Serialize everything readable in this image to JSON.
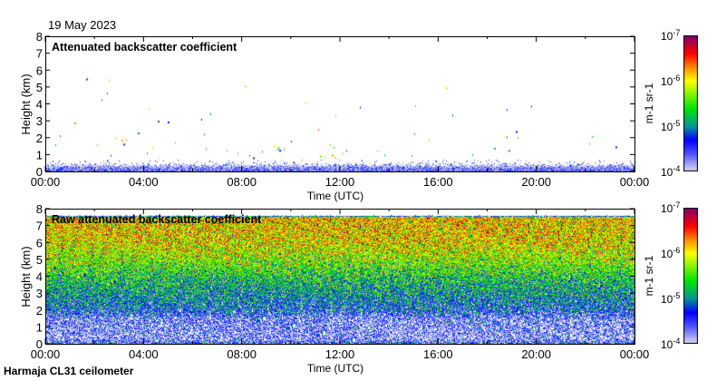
{
  "date": "19 May 2023",
  "footer": "Harmaja CL31 ceilometer",
  "chart_data": [
    {
      "type": "heatmap",
      "title": "Attenuated backscatter coefficient",
      "xlabel": "Time (UTC)",
      "ylabel": "Height (km)",
      "xticks": [
        "00:00",
        "04:00",
        "08:00",
        "12:00",
        "16:00",
        "20:00",
        "00:00"
      ],
      "yticks": [
        "0",
        "1",
        "2",
        "3",
        "4",
        "5",
        "6",
        "7",
        "8"
      ],
      "ylim": [
        0,
        8
      ],
      "xlim_hours": [
        0,
        24
      ],
      "colorbar": {
        "label": "m-1 sr-1",
        "ticks": [
          "10-7",
          "10-6",
          "10-5",
          "10-4"
        ],
        "range_log10": [
          -7,
          -4
        ],
        "scale": "log"
      },
      "profile": {
        "heights_km": [
          0,
          0.25,
          0.5,
          0.75,
          1,
          2,
          4,
          8
        ],
        "log10_value": [
          -6.7,
          -6.8,
          -7.2,
          -7.6,
          -8,
          -8,
          -8,
          -8
        ]
      }
    },
    {
      "type": "heatmap",
      "title": "Raw attenuated backscatter coefficient",
      "xlabel": "Time (UTC)",
      "ylabel": "Height (km)",
      "xticks": [
        "00:00",
        "04:00",
        "08:00",
        "12:00",
        "16:00",
        "20:00",
        "00:00"
      ],
      "yticks": [
        "0",
        "1",
        "2",
        "3",
        "4",
        "5",
        "6",
        "7",
        "8"
      ],
      "ylim": [
        0,
        8
      ],
      "xlim_hours": [
        0,
        24
      ],
      "colorbar": {
        "label": "m-1 sr-1",
        "ticks": [
          "10-7",
          "10-6",
          "10-5",
          "10-4"
        ],
        "range_log10": [
          -7,
          -4
        ],
        "scale": "log"
      },
      "profile": {
        "heights_km": [
          0,
          0.3,
          1.5,
          2,
          4,
          5,
          6,
          7.5,
          7.7
        ],
        "log10_value": [
          -6.4,
          -6.8,
          -6.7,
          -6.3,
          -5.7,
          -5.3,
          -5.0,
          -4.9,
          -9
        ]
      }
    }
  ],
  "colors": {
    "low": "#e0e0f0",
    "blue": "#0000ff",
    "teal": "#009090",
    "green": "#00e000",
    "yellow": "#ffff00",
    "orange": "#ff9000",
    "red": "#ff0000",
    "high": "#800070"
  }
}
